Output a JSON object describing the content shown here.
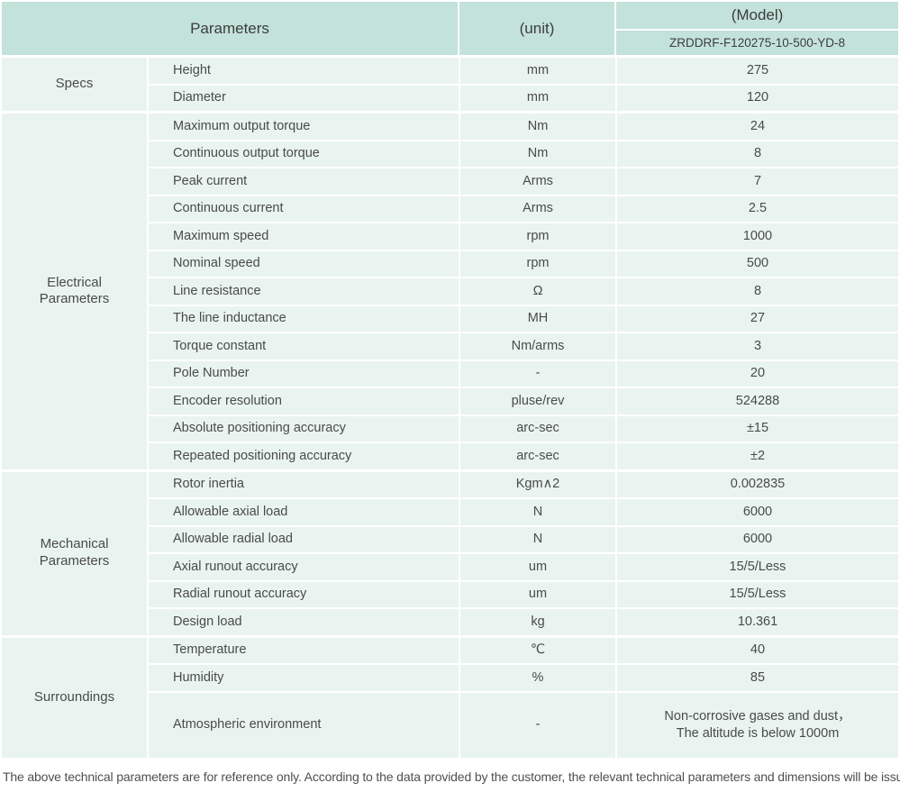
{
  "columns": {
    "parameters": "Parameters",
    "unit": "(unit)",
    "model_label": "(Model)",
    "model_value": "ZRDDRF-F120275-10-500-YD-8"
  },
  "sections": [
    {
      "label": "Specs",
      "rows": [
        {
          "name": "Height",
          "unit": "mm",
          "value": "275"
        },
        {
          "name": "Diameter",
          "unit": "mm",
          "value": "120"
        }
      ]
    },
    {
      "label": "Electrical Parameters",
      "rows": [
        {
          "name": "Maximum output torque",
          "unit": "Nm",
          "value": "24"
        },
        {
          "name": "Continuous output torque",
          "unit": "Nm",
          "value": "8"
        },
        {
          "name": "Peak current",
          "unit": "Arms",
          "value": "7"
        },
        {
          "name": "Continuous current",
          "unit": "Arms",
          "value": "2.5"
        },
        {
          "name": "Maximum speed",
          "unit": "rpm",
          "value": "1000"
        },
        {
          "name": "Nominal speed",
          "unit": "rpm",
          "value": "500"
        },
        {
          "name": "Line resistance",
          "unit": "Ω",
          "value": "8"
        },
        {
          "name": "The line inductance",
          "unit": "MH",
          "value": "27"
        },
        {
          "name": "Torque constant",
          "unit": "Nm/arms",
          "value": "3"
        },
        {
          "name": "Pole Number",
          "unit": "-",
          "value": "20"
        },
        {
          "name": "Encoder resolution",
          "unit": "pluse/rev",
          "value": "524288"
        },
        {
          "name": "Absolute positioning accuracy",
          "unit": "arc-sec",
          "value": "±15"
        },
        {
          "name": "Repeated positioning accuracy",
          "unit": "arc-sec",
          "value": "±2"
        }
      ]
    },
    {
      "label": "Mechanical Parameters",
      "rows": [
        {
          "name": "Rotor inertia",
          "unit": "Kgm∧2",
          "value": "0.002835"
        },
        {
          "name": "Allowable axial load",
          "unit": "N",
          "value": "6000"
        },
        {
          "name": "Allowable radial load",
          "unit": "N",
          "value": "6000"
        },
        {
          "name": "Axial runout accuracy",
          "unit": "um",
          "value": "15/5/Less"
        },
        {
          "name": "Radial runout accuracy",
          "unit": "um",
          "value": "15/5/Less"
        },
        {
          "name": "Design load",
          "unit": "kg",
          "value": "10.361"
        }
      ]
    },
    {
      "label": "Surroundings",
      "rows": [
        {
          "name": "Temperature",
          "unit": "℃",
          "value": "40"
        },
        {
          "name": "Humidity",
          "unit": "%",
          "value": "85"
        },
        {
          "name": "Atmospheric environment",
          "unit": "-",
          "value_line1": "Non-corrosive gases and dust，",
          "value_line2": "The altitude is below 1000m"
        }
      ]
    }
  ],
  "footnote": "The above technical parameters are for reference only. According to the data provided by the customer, the relevant technical parameters and dimensions will be issued.",
  "colors": {
    "header_bg": "#c3e2da",
    "cell_bg": "#e9f4f1",
    "separator": "#ffffff",
    "text": "#4a4a4a"
  }
}
